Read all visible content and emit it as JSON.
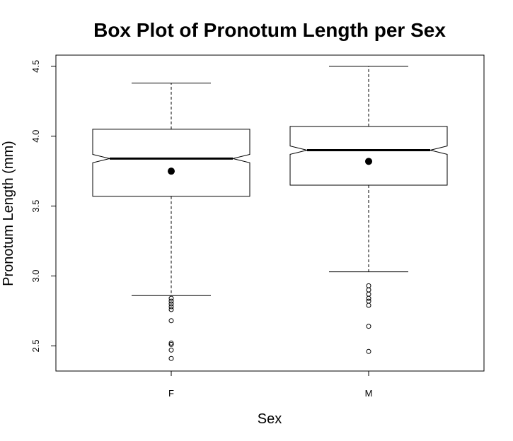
{
  "chart_data": {
    "type": "boxplot",
    "title": "Box Plot of Pronotum Length per Sex",
    "xlabel": "Sex",
    "ylabel": "Pronotum Length (mm)",
    "ylim": [
      2.32,
      4.58
    ],
    "yticks": [
      "2.5",
      "3.0",
      "3.5",
      "4.0",
      "4.5"
    ],
    "categories": [
      "F",
      "M"
    ],
    "notched": true,
    "grid": false,
    "legend": "none",
    "boxes": [
      {
        "category": "F",
        "whisker_low": 2.86,
        "q1": 3.57,
        "median": 3.84,
        "q3": 4.05,
        "whisker_high": 4.38,
        "notch_low": 3.81,
        "notch_high": 3.87,
        "mean": 3.75,
        "outliers": [
          2.84,
          2.82,
          2.8,
          2.78,
          2.76,
          2.68,
          2.52,
          2.51,
          2.47,
          2.41
        ]
      },
      {
        "category": "M",
        "whisker_low": 3.03,
        "q1": 3.65,
        "median": 3.9,
        "q3": 4.07,
        "whisker_high": 4.5,
        "notch_low": 3.87,
        "notch_high": 3.93,
        "mean": 3.82,
        "outliers": [
          2.93,
          2.9,
          2.87,
          2.84,
          2.82,
          2.79,
          2.64,
          2.46
        ]
      }
    ]
  }
}
